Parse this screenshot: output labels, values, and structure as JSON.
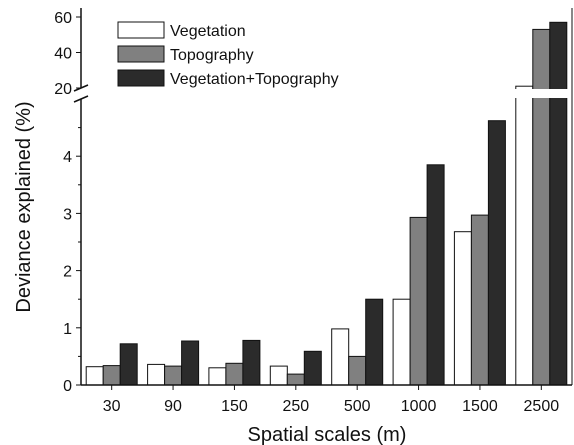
{
  "chart_data": {
    "type": "bar",
    "xlabel": "Spatial scales (m)",
    "ylabel": "Deviance explained (%)",
    "categories": [
      "30",
      "90",
      "150",
      "250",
      "500",
      "1000",
      "1500",
      "2500"
    ],
    "series": [
      {
        "name": "Vegetation",
        "color": "#ffffff",
        "values": [
          0.32,
          0.36,
          0.3,
          0.33,
          0.98,
          1.5,
          2.68,
          21
        ]
      },
      {
        "name": "Topography",
        "color": "#808080",
        "values": [
          0.34,
          0.33,
          0.38,
          0.19,
          0.5,
          2.93,
          2.97,
          53
        ]
      },
      {
        "name": "Vegetation+Topography",
        "color": "#2b2b2b",
        "values": [
          0.72,
          0.77,
          0.78,
          0.59,
          1.5,
          3.85,
          4.62,
          57
        ]
      }
    ],
    "axis_break": {
      "from": 5,
      "to": 20
    },
    "y_ticks_lower": [
      "0",
      "1",
      "2",
      "3",
      "4"
    ],
    "y_ticks_upper": [
      "20",
      "40",
      "60"
    ],
    "ylim_lower": [
      0,
      5
    ],
    "ylim_upper": [
      20,
      60
    ],
    "legend_position": "top-left"
  }
}
